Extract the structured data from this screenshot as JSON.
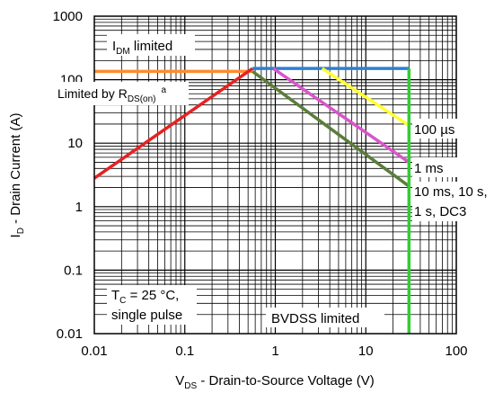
{
  "chart_data": {
    "type": "line",
    "title": "",
    "x_scale": "log",
    "y_scale": "log",
    "xlim": [
      0.01,
      100
    ],
    "ylim": [
      0.01,
      1000
    ],
    "grid": true,
    "xlabel": {
      "main": "V",
      "sub": "DS",
      "rest": " - Drain-to-Source Voltage (V)"
    },
    "ylabel": {
      "main": "I",
      "sub": "D",
      "rest": " - Drain Current (A)"
    },
    "x_ticks": [
      {
        "value": 0.01,
        "label": "0.01"
      },
      {
        "value": 0.1,
        "label": "0.1"
      },
      {
        "value": 1,
        "label": "1"
      },
      {
        "value": 10,
        "label": "10"
      },
      {
        "value": 100,
        "label": "100"
      }
    ],
    "y_ticks": [
      {
        "value": 0.01,
        "label": "0.01"
      },
      {
        "value": 0.1,
        "label": "0.1"
      },
      {
        "value": 1,
        "label": "1"
      },
      {
        "value": 10,
        "label": "10"
      },
      {
        "value": 100,
        "label": "100"
      },
      {
        "value": 1000,
        "label": "1000"
      }
    ],
    "series": [
      {
        "color": "#ff8c2e",
        "points": [
          [
            0.01,
            135
          ],
          [
            0.56,
            135
          ]
        ]
      },
      {
        "color": "#2f7fd0",
        "points": [
          [
            0.56,
            150
          ],
          [
            30,
            150
          ]
        ]
      },
      {
        "color": "#e52222",
        "points": [
          [
            0.01,
            2.8
          ],
          [
            0.56,
            150
          ]
        ]
      },
      {
        "color": "#ffff33",
        "points": [
          [
            3.3,
            150
          ],
          [
            30,
            19
          ]
        ]
      },
      {
        "color": "#d855cc",
        "points": [
          [
            0.95,
            150
          ],
          [
            30,
            5
          ]
        ]
      },
      {
        "color": "#5a7d3a",
        "points": [
          [
            0.56,
            135
          ],
          [
            30,
            2.1
          ]
        ]
      },
      {
        "color": "#33cc33",
        "points": [
          [
            30,
            150
          ],
          [
            30,
            0.01
          ]
        ]
      }
    ],
    "annotations": {
      "idm": {
        "main": "I",
        "sub": "DM",
        "rest": " limited"
      },
      "rds": {
        "main": "Limited by R",
        "sub": "DS(on)",
        "sup": "a"
      },
      "t100us": "100 µs",
      "t1ms": "1 ms",
      "t10ms_line1": "10 ms, 10 s,",
      "t10ms_line2": "1 s, DC3",
      "tc": {
        "main": "T",
        "sub": "C",
        "rest": " = 25 °C,"
      },
      "pulse": "single pulse",
      "bvdss": "BVDSS limited"
    }
  }
}
